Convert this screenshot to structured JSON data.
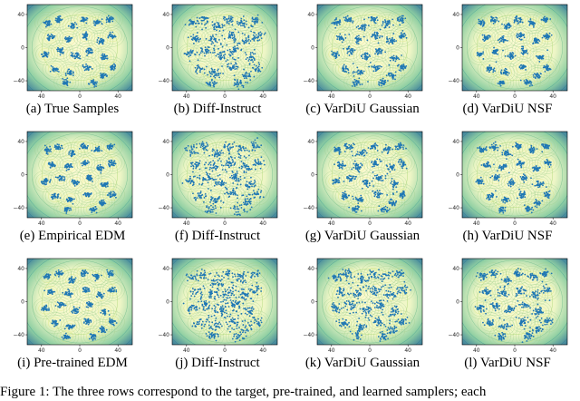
{
  "figure": {
    "y_ticks": [
      "40",
      "0",
      "−40"
    ],
    "x_ticks": [
      "40",
      "0",
      "40"
    ],
    "colors": {
      "point": "#1f77b4",
      "contour_low": "#fbf59a",
      "contour_high": "#2a5a86"
    },
    "captions": [
      "(a) True Samples",
      "(b) Diff-Instruct",
      "(c) VarDiU Gaussian",
      "(d) VarDiU NSF",
      "(e) Empirical EDM",
      "(f) Diff-Instruct",
      "(g) VarDiU Gaussian",
      "(h) VarDiU NSF",
      "(i) Pre-trained EDM",
      "(j) Diff-Instruct",
      "(k) VarDiU Gaussian",
      "(l) VarDiU NSF"
    ],
    "caption_text": "Figure 1:  The three rows correspond to the target, pre-trained, and learned samplers; each"
  }
}
